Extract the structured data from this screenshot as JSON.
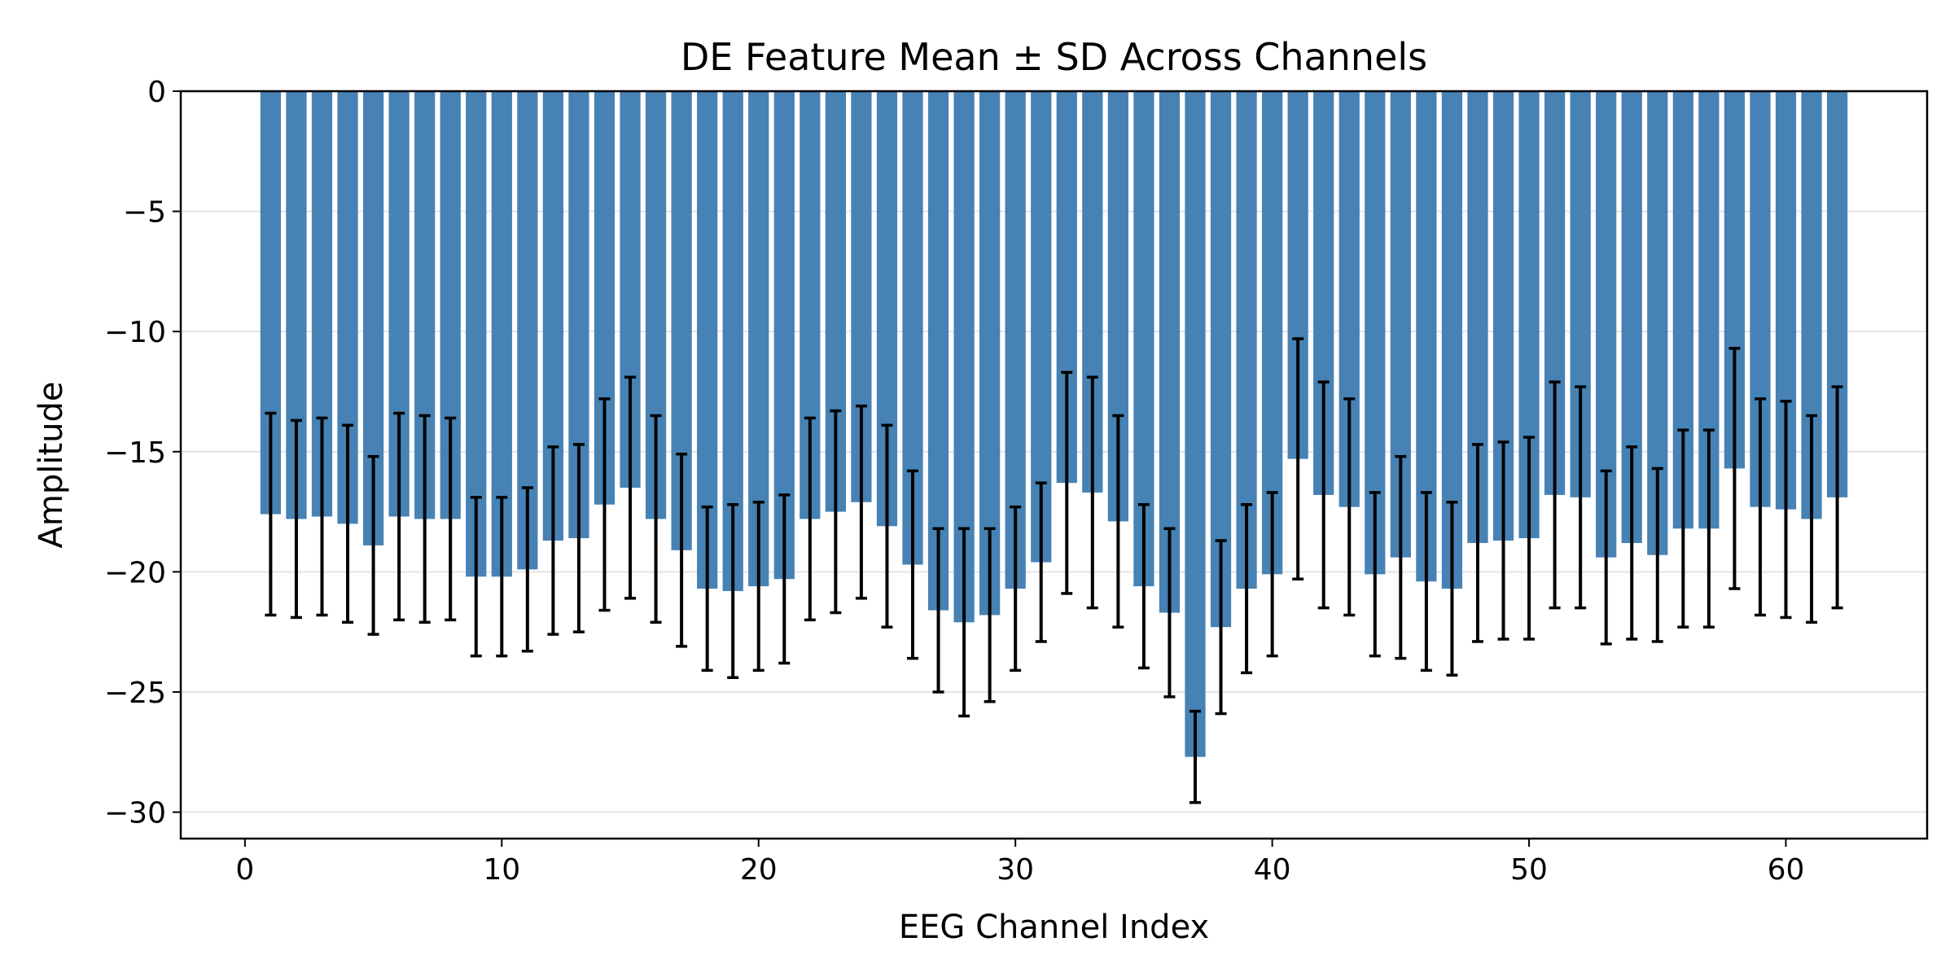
{
  "chart_data": {
    "type": "bar",
    "title": "DE Feature Mean ± SD Across Channels",
    "xlabel": "EEG Channel Index",
    "ylabel": "Amplitude",
    "xlim": [
      -2.5,
      65.5
    ],
    "ylim": [
      -31.1,
      0
    ],
    "xticks": [
      0,
      10,
      20,
      30,
      40,
      50,
      60
    ],
    "yticks": [
      0,
      -5,
      -10,
      -15,
      -20,
      -25,
      -30
    ],
    "ytick_labels": [
      "0",
      "−5",
      "−10",
      "−15",
      "−20",
      "−25",
      "−30"
    ],
    "grid": "horizontal",
    "bar_color": "#4682B4",
    "errorbar_color": "#000000",
    "x": [
      1,
      2,
      3,
      4,
      5,
      6,
      7,
      8,
      9,
      10,
      11,
      12,
      13,
      14,
      15,
      16,
      17,
      18,
      19,
      20,
      21,
      22,
      23,
      24,
      25,
      26,
      27,
      28,
      29,
      30,
      31,
      32,
      33,
      34,
      35,
      36,
      37,
      38,
      39,
      40,
      41,
      42,
      43,
      44,
      45,
      46,
      47,
      48,
      49,
      50,
      51,
      52,
      53,
      54,
      55,
      56,
      57,
      58,
      59,
      60,
      61,
      62
    ],
    "values": [
      -17.6,
      -17.8,
      -17.7,
      -18.0,
      -18.9,
      -17.7,
      -17.8,
      -17.8,
      -20.2,
      -20.2,
      -19.9,
      -18.7,
      -18.6,
      -17.2,
      -16.5,
      -17.8,
      -19.1,
      -20.7,
      -20.8,
      -20.6,
      -20.3,
      -17.8,
      -17.5,
      -17.1,
      -18.1,
      -19.7,
      -21.6,
      -22.1,
      -21.8,
      -20.7,
      -19.6,
      -16.3,
      -16.7,
      -17.9,
      -20.6,
      -21.7,
      -27.7,
      -22.3,
      -20.7,
      -20.1,
      -15.3,
      -16.8,
      -17.3,
      -20.1,
      -19.4,
      -20.4,
      -20.7,
      -18.8,
      -18.7,
      -18.6,
      -16.8,
      -16.9,
      -19.4,
      -18.8,
      -19.3,
      -18.2,
      -18.2,
      -15.7,
      -17.3,
      -17.4,
      -17.8,
      -16.9
    ],
    "errors": [
      4.2,
      4.1,
      4.1,
      4.1,
      3.7,
      4.3,
      4.3,
      4.2,
      3.3,
      3.3,
      3.4,
      3.9,
      3.9,
      4.4,
      4.6,
      4.3,
      4.0,
      3.4,
      3.6,
      3.5,
      3.5,
      4.2,
      4.2,
      4.0,
      4.2,
      3.9,
      3.4,
      3.9,
      3.6,
      3.4,
      3.3,
      4.6,
      4.8,
      4.4,
      3.4,
      3.5,
      1.9,
      3.6,
      3.5,
      3.4,
      5.0,
      4.7,
      4.5,
      3.4,
      4.2,
      3.7,
      3.6,
      4.1,
      4.1,
      4.2,
      4.7,
      4.6,
      3.6,
      4.0,
      3.6,
      4.1,
      4.1,
      5.0,
      4.5,
      4.5,
      4.3,
      4.6
    ]
  }
}
